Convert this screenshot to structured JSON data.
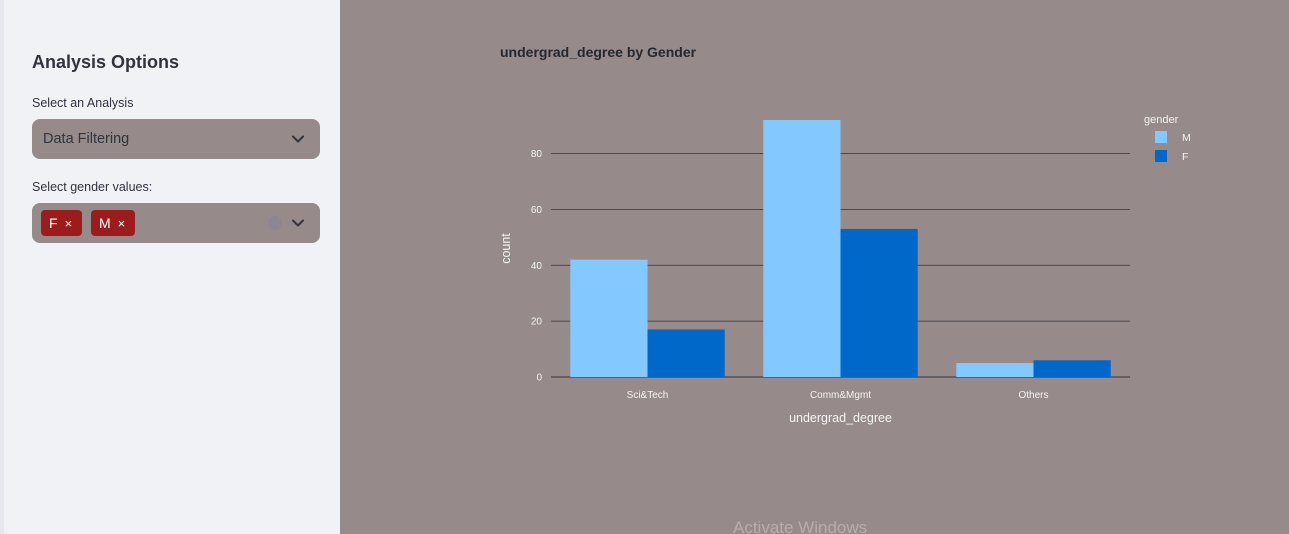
{
  "sidebar": {
    "title": "Analysis Options",
    "analysis_label": "Select an Analysis",
    "analysis_value": "Data Filtering",
    "gender_label": "Select gender values:",
    "gender_tags": [
      "F",
      "M"
    ],
    "tag_remove_glyph": "×"
  },
  "watermark": "Activate Windows",
  "colors": {
    "M": "#83c9ff",
    "F": "#0068c9",
    "tag": "#9b1c1c"
  },
  "chart_data": {
    "type": "bar",
    "title": "undergrad_degree by Gender",
    "xlabel": "undergrad_degree",
    "ylabel": "count",
    "categories": [
      "Sci&Tech",
      "Comm&Mgmt",
      "Others"
    ],
    "series": [
      {
        "name": "M",
        "values": [
          42,
          92,
          5
        ]
      },
      {
        "name": "F",
        "values": [
          17,
          53,
          6
        ]
      }
    ],
    "yticks": [
      0,
      20,
      40,
      60,
      80
    ],
    "ylim": [
      0,
      92
    ],
    "legend_title": "gender",
    "legend_placement": "top-right",
    "grid": true
  }
}
